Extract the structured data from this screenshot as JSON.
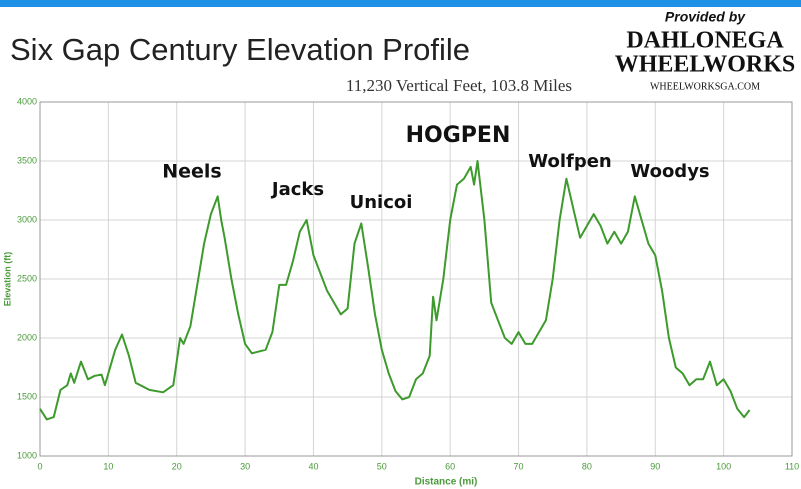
{
  "chart_data": {
    "type": "line",
    "title": "Six Gap Century Elevation Profile",
    "subtitle": "11,230 Vertical Feet, 103.8 Miles",
    "credit": [
      "Provided by",
      "DAHLONEGA",
      "WHEELWORKS",
      "WHEELWORKSGA.COM"
    ],
    "annotations": [
      "Neels",
      "Jacks",
      "Unicoi",
      "HOGPEN",
      "Wolfpen",
      "Woodys"
    ],
    "xlabel": "Distance (mi)",
    "ylabel": "Elevation (ft)",
    "xlim": [
      0,
      110
    ],
    "xticks": [
      0,
      10,
      20,
      30,
      40,
      50,
      60,
      70,
      80,
      90,
      100,
      110
    ],
    "ylim": [
      1000,
      4000
    ],
    "yticks": [
      1000,
      1500,
      2000,
      2500,
      3000,
      3500,
      4000
    ],
    "grid": true,
    "series": [
      {
        "color": "#3d9a2c",
        "x": [
          0,
          1,
          2,
          3,
          4,
          4.5,
          5,
          6,
          7,
          8,
          9,
          9.5,
          11,
          12,
          13,
          14,
          16,
          18,
          19.5,
          20.5,
          21,
          22,
          24,
          25,
          26,
          26.5,
          27,
          28,
          29,
          30,
          31,
          33,
          34,
          35,
          36,
          37,
          38,
          39,
          40,
          42,
          44,
          45,
          46,
          47,
          48,
          49,
          50,
          51,
          52,
          53,
          54,
          55,
          56,
          57,
          57.5,
          58,
          59,
          60,
          61,
          62,
          63,
          63.5,
          64,
          65,
          66,
          67,
          68,
          69,
          70,
          71,
          72,
          74,
          75,
          76,
          77,
          78,
          79,
          80,
          81,
          82,
          83,
          84,
          85,
          86,
          87,
          88,
          89,
          90,
          91,
          92,
          93,
          94,
          95,
          96,
          97,
          98,
          99,
          100,
          101,
          102,
          103,
          103.8
        ],
        "values": [
          1400,
          1310,
          1330,
          1560,
          1600,
          1700,
          1620,
          1800,
          1650,
          1680,
          1690,
          1600,
          1900,
          2030,
          1850,
          1620,
          1560,
          1540,
          1600,
          2000,
          1950,
          2100,
          2800,
          3050,
          3200,
          3000,
          2850,
          2500,
          2200,
          1950,
          1870,
          1900,
          2050,
          2450,
          2450,
          2650,
          2900,
          3000,
          2700,
          2400,
          2200,
          2250,
          2800,
          2970,
          2600,
          2200,
          1900,
          1700,
          1550,
          1480,
          1500,
          1650,
          1700,
          1850,
          2350,
          2150,
          2500,
          3000,
          3300,
          3350,
          3450,
          3300,
          3500,
          3000,
          2300,
          2150,
          2000,
          1950,
          2050,
          1950,
          1950,
          2150,
          2500,
          3000,
          3350,
          3100,
          2850,
          2950,
          3050,
          2950,
          2800,
          2900,
          2800,
          2900,
          3200,
          3000,
          2800,
          2700,
          2400,
          2000,
          1750,
          1700,
          1600,
          1650,
          1650,
          1800,
          1600,
          1650,
          1550,
          1400,
          1330,
          1390
        ]
      }
    ]
  }
}
